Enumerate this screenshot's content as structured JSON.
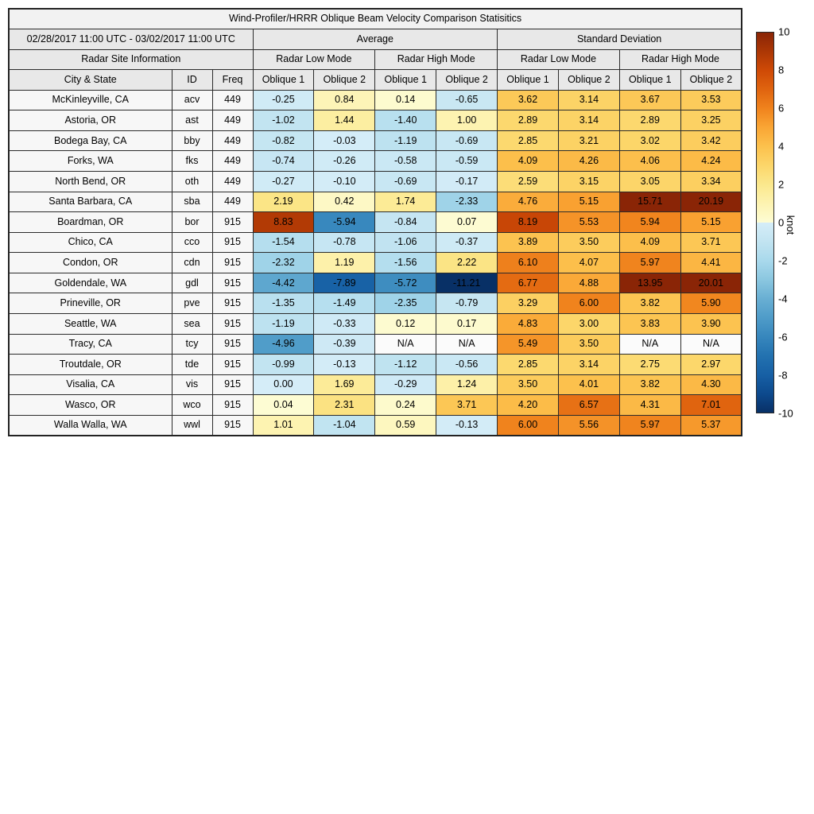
{
  "title": "Wind-Profiler/HRRR Oblique Beam Velocity Comparison Statisitics",
  "header": {
    "date_range": "02/28/2017 11:00 UTC - 03/02/2017 11:00 UTC",
    "average": "Average",
    "std": "Standard Deviation",
    "site_info": "Radar Site Information",
    "low_mode": "Radar Low Mode",
    "high_mode": "Radar High Mode",
    "city": "City & State",
    "id": "ID",
    "freq": "Freq",
    "oblique1": "Oblique 1",
    "oblique2": "Oblique 2"
  },
  "colorbar": {
    "label": "knot",
    "min": -10,
    "max": 10,
    "ticks": [
      "10",
      "8",
      "6",
      "4",
      "2",
      "0",
      "-2",
      "-4",
      "-6",
      "-8",
      "-10"
    ],
    "na_color": "#fbfbfb",
    "warm_stops": [
      "#fdfcd4",
      "#fdf3b1",
      "#fbe88d",
      "#fcd66a",
      "#fcc14d",
      "#faa635",
      "#f0831d",
      "#e0640f",
      "#cf4a06",
      "#ac3705",
      "#8a2506"
    ],
    "cool_stops": [
      "#d5edf8",
      "#c2e4f1",
      "#a9d9ec",
      "#8bc7e0",
      "#69afd3",
      "#4f9cc9",
      "#3787bd",
      "#2372b0",
      "#1760a5",
      "#0d4a8e",
      "#083066"
    ]
  },
  "chart_data": {
    "type": "heatmap",
    "title": "Wind-Profiler/HRRR Oblique Beam Velocity Comparison Statisitics",
    "value_unit": "knot",
    "color_range": [
      -10,
      10
    ],
    "value_columns": [
      "Average Radar Low Mode Oblique 1",
      "Average Radar Low Mode Oblique 2",
      "Average Radar High Mode Oblique 1",
      "Average Radar High Mode Oblique 2",
      "Standard Deviation Radar Low Mode Oblique 1",
      "Standard Deviation Radar Low Mode Oblique 2",
      "Standard Deviation Radar High Mode Oblique 1",
      "Standard Deviation Radar High Mode Oblique 2"
    ],
    "rows": [
      {
        "city": "McKinleyville, CA",
        "id": "acv",
        "freq": "449",
        "values": [
          "-0.25",
          "0.84",
          "0.14",
          "-0.65",
          "3.62",
          "3.14",
          "3.67",
          "3.53"
        ]
      },
      {
        "city": "Astoria, OR",
        "id": "ast",
        "freq": "449",
        "values": [
          "-1.02",
          "1.44",
          "-1.40",
          "1.00",
          "2.89",
          "3.14",
          "2.89",
          "3.25"
        ]
      },
      {
        "city": "Bodega Bay, CA",
        "id": "bby",
        "freq": "449",
        "values": [
          "-0.82",
          "-0.03",
          "-1.19",
          "-0.69",
          "2.85",
          "3.21",
          "3.02",
          "3.42"
        ]
      },
      {
        "city": "Forks, WA",
        "id": "fks",
        "freq": "449",
        "values": [
          "-0.74",
          "-0.26",
          "-0.58",
          "-0.59",
          "4.09",
          "4.26",
          "4.06",
          "4.24"
        ]
      },
      {
        "city": "North Bend, OR",
        "id": "oth",
        "freq": "449",
        "values": [
          "-0.27",
          "-0.10",
          "-0.69",
          "-0.17",
          "2.59",
          "3.15",
          "3.05",
          "3.34"
        ]
      },
      {
        "city": "Santa Barbara, CA",
        "id": "sba",
        "freq": "449",
        "values": [
          "2.19",
          "0.42",
          "1.74",
          "-2.33",
          "4.76",
          "5.15",
          "15.71",
          "20.19"
        ]
      },
      {
        "city": "Boardman, OR",
        "id": "bor",
        "freq": "915",
        "values": [
          "8.83",
          "-5.94",
          "-0.84",
          "0.07",
          "8.19",
          "5.53",
          "5.94",
          "5.15"
        ]
      },
      {
        "city": "Chico, CA",
        "id": "cco",
        "freq": "915",
        "values": [
          "-1.54",
          "-0.78",
          "-1.06",
          "-0.37",
          "3.89",
          "3.50",
          "4.09",
          "3.71"
        ]
      },
      {
        "city": "Condon, OR",
        "id": "cdn",
        "freq": "915",
        "values": [
          "-2.32",
          "1.19",
          "-1.56",
          "2.22",
          "6.10",
          "4.07",
          "5.97",
          "4.41"
        ]
      },
      {
        "city": "Goldendale, WA",
        "id": "gdl",
        "freq": "915",
        "values": [
          "-4.42",
          "-7.89",
          "-5.72",
          "-11.21",
          "6.77",
          "4.88",
          "13.95",
          "20.01"
        ]
      },
      {
        "city": "Prineville, OR",
        "id": "pve",
        "freq": "915",
        "values": [
          "-1.35",
          "-1.49",
          "-2.35",
          "-0.79",
          "3.29",
          "6.00",
          "3.82",
          "5.90"
        ]
      },
      {
        "city": "Seattle, WA",
        "id": "sea",
        "freq": "915",
        "values": [
          "-1.19",
          "-0.33",
          "0.12",
          "0.17",
          "4.83",
          "3.00",
          "3.83",
          "3.90"
        ]
      },
      {
        "city": "Tracy, CA",
        "id": "tcy",
        "freq": "915",
        "values": [
          "-4.96",
          "-0.39",
          "N/A",
          "N/A",
          "5.49",
          "3.50",
          "N/A",
          "N/A"
        ]
      },
      {
        "city": "Troutdale, OR",
        "id": "tde",
        "freq": "915",
        "values": [
          "-0.99",
          "-0.13",
          "-1.12",
          "-0.56",
          "2.85",
          "3.14",
          "2.75",
          "2.97"
        ]
      },
      {
        "city": "Visalia, CA",
        "id": "vis",
        "freq": "915",
        "values": [
          "0.00",
          "1.69",
          "-0.29",
          "1.24",
          "3.50",
          "4.01",
          "3.82",
          "4.30"
        ]
      },
      {
        "city": "Wasco, OR",
        "id": "wco",
        "freq": "915",
        "values": [
          "0.04",
          "2.31",
          "0.24",
          "3.71",
          "4.20",
          "6.57",
          "4.31",
          "7.01"
        ]
      },
      {
        "city": "Walla Walla, WA",
        "id": "wwl",
        "freq": "915",
        "values": [
          "1.01",
          "-1.04",
          "0.59",
          "-0.13",
          "6.00",
          "5.56",
          "5.97",
          "5.37"
        ]
      }
    ]
  }
}
